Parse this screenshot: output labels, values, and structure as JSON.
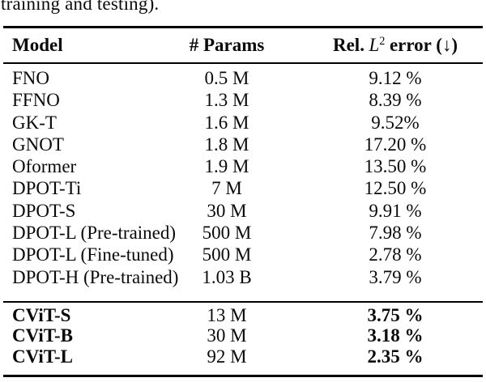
{
  "page": {
    "top_text_fragment": "training and testing)."
  },
  "colors": {
    "text": "#0a0a0a",
    "rule": "#000000",
    "background": "#ffffff"
  },
  "table": {
    "header": {
      "model": "Model",
      "params": "# Params",
      "error_prefix": "Rel.",
      "error_math_base": "L",
      "error_math_sup": "2",
      "error_suffix": "error (↓)"
    },
    "rows": [
      {
        "model": "FNO",
        "params": "0.5 M",
        "error": "9.12 %"
      },
      {
        "model": "FFNO",
        "params": "1.3 M",
        "error": "8.39 %"
      },
      {
        "model": "GK-T",
        "params": "1.6 M",
        "error": "9.52%"
      },
      {
        "model": "GNOT",
        "params": "1.8 M",
        "error": "17.20 %"
      },
      {
        "model": "Oformer",
        "params": "1.9 M",
        "error": "13.50 %"
      },
      {
        "model": "DPOT-Ti",
        "params": "7 M",
        "error": "12.50 %"
      },
      {
        "model": "DPOT-S",
        "params": "30 M",
        "error": "9.91 %"
      },
      {
        "model": "DPOT-L (Pre-trained)",
        "params": "500 M",
        "error": "7.98 %"
      },
      {
        "model": "DPOT-L (Fine-tuned)",
        "params": "500 M",
        "error": "2.78 %"
      },
      {
        "model": "DPOT-H (Pre-trained)",
        "params": "1.03 B",
        "error": "3.79 %"
      }
    ],
    "highlight_rows": [
      {
        "model": "CViT-S",
        "params": "13 M",
        "error": "3.75 %"
      },
      {
        "model": "CViT-B",
        "params": "30 M",
        "error": "3.18 %"
      },
      {
        "model": "CViT-L",
        "params": "92 M",
        "error": "2.35 %"
      }
    ]
  }
}
